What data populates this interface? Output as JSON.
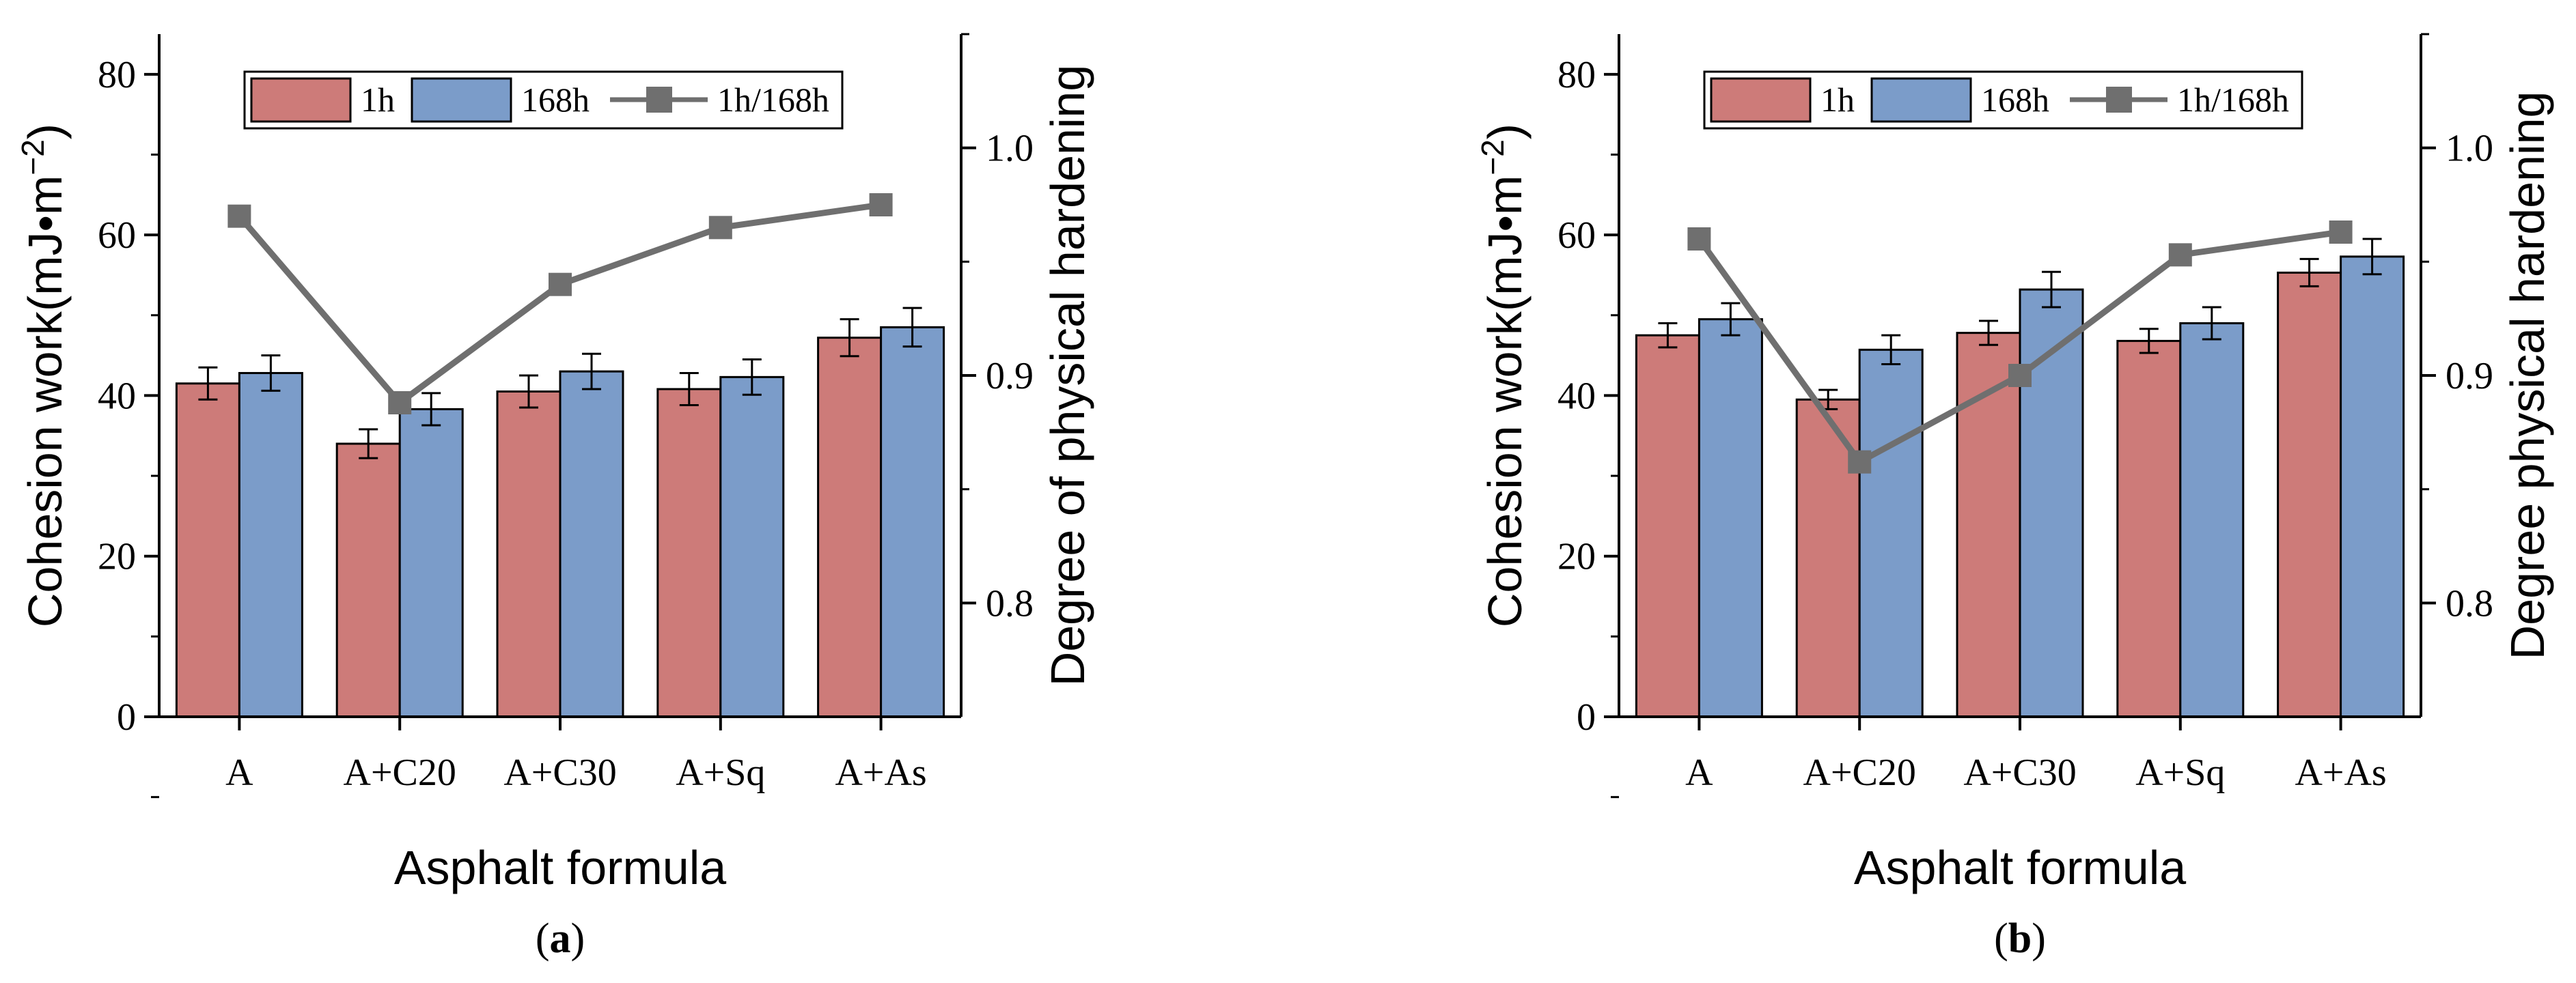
{
  "colors": {
    "bar_1h": "#cd7b79",
    "bar_168h": "#7b9cc9",
    "line": "#6f6f6f"
  },
  "chart_data": [
    {
      "id": "a",
      "caption_letter": "a",
      "type": "bar",
      "categories": [
        "A",
        "A+C20",
        "A+C30",
        "A+Sq",
        "A+As"
      ],
      "series": [
        {
          "name": "1h",
          "values": [
            41.5,
            34.0,
            40.5,
            40.8,
            47.2
          ],
          "errors": [
            2.0,
            1.8,
            2.0,
            2.0,
            2.3
          ]
        },
        {
          "name": "168h",
          "values": [
            42.8,
            38.3,
            43.0,
            42.3,
            48.5
          ],
          "errors": [
            2.2,
            2.0,
            2.2,
            2.2,
            2.4
          ]
        }
      ],
      "line_series": {
        "name": "1h/168h",
        "values": [
          0.97,
          0.888,
          0.94,
          0.965,
          0.975
        ]
      },
      "xlabel": "Asphalt formula",
      "ylabel": "Cohesion work(mJ•m−2)",
      "ylabel_main": "Cohesion work(mJ•m",
      "ylabel_sup": "−2",
      "ylabel_close": ")",
      "y2label": "Degree of physical hardening",
      "ylim": [
        0,
        85
      ],
      "yticks": [
        "0",
        "20",
        "40",
        "60",
        "80"
      ],
      "y2lim": [
        0.75,
        1.05
      ],
      "y2ticks": [
        "0.8",
        "0.9",
        "1.0"
      ]
    },
    {
      "id": "b",
      "caption_letter": "b",
      "type": "bar",
      "categories": [
        "A",
        "A+C20",
        "A+C30",
        "A+Sq",
        "A+As"
      ],
      "series": [
        {
          "name": "1h",
          "values": [
            47.5,
            39.5,
            47.8,
            46.8,
            55.3
          ],
          "errors": [
            1.5,
            1.2,
            1.5,
            1.5,
            1.7
          ]
        },
        {
          "name": "168h",
          "values": [
            49.5,
            45.7,
            53.2,
            49.0,
            57.3
          ],
          "errors": [
            2.0,
            1.8,
            2.2,
            2.0,
            2.2
          ]
        }
      ],
      "line_series": {
        "name": "1h/168h",
        "values": [
          0.96,
          0.862,
          0.9,
          0.953,
          0.963
        ]
      },
      "xlabel": "Asphalt formula",
      "ylabel": "Cohesion work(mJ•m−2)",
      "ylabel_main": "Cohesion work(mJ•m",
      "ylabel_sup": "−2",
      "ylabel_close": ")",
      "y2label": "Degree physical hardening",
      "ylim": [
        0,
        85
      ],
      "yticks": [
        "0",
        "20",
        "40",
        "60",
        "80"
      ],
      "y2lim": [
        0.75,
        1.05
      ],
      "y2ticks": [
        "0.8",
        "0.9",
        "1.0"
      ]
    }
  ]
}
